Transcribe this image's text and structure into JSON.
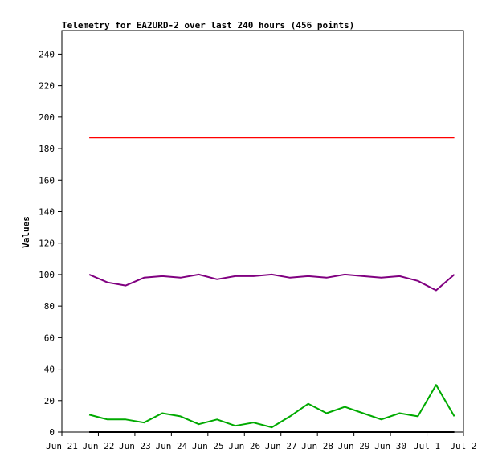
{
  "chart_data": {
    "type": "line",
    "title": "Telemetry for EA2URD-2 over last 240 hours (456 points)",
    "xlabel": "",
    "ylabel": "Values",
    "x_range": [
      "Jun 21",
      "Jul 2"
    ],
    "ylim": [
      0,
      255
    ],
    "grid": false,
    "legend": "none",
    "x_ticks": [
      "Jun 21",
      "Jun 22",
      "Jun 23",
      "Jun 24",
      "Jun 25",
      "Jun 26",
      "Jun 27",
      "Jun 28",
      "Jun 29",
      "Jun 30",
      "Jul 1",
      "Jul 2"
    ],
    "y_ticks": [
      0,
      20,
      40,
      60,
      80,
      100,
      120,
      140,
      160,
      180,
      200,
      220,
      240
    ],
    "x": [
      "Jun 21 18:00",
      "Jun 22 06:00",
      "Jun 22 18:00",
      "Jun 23 06:00",
      "Jun 23 18:00",
      "Jun 24 06:00",
      "Jun 24 18:00",
      "Jun 25 06:00",
      "Jun 25 18:00",
      "Jun 26 06:00",
      "Jun 26 18:00",
      "Jun 27 06:00",
      "Jun 27 18:00",
      "Jun 28 06:00",
      "Jun 28 18:00",
      "Jun 29 06:00",
      "Jun 29 18:00",
      "Jun 30 06:00",
      "Jun 30 18:00",
      "Jul 1 06:00",
      "Jul 1 18:00"
    ],
    "series": [
      {
        "color": "#ff0000",
        "values": [
          187,
          187,
          187,
          187,
          187,
          187,
          187,
          187,
          187,
          187,
          187,
          187,
          187,
          187,
          187,
          187,
          187,
          187,
          187,
          187,
          187
        ]
      },
      {
        "color": "#800080",
        "values": [
          100,
          95,
          93,
          98,
          99,
          98,
          100,
          97,
          99,
          99,
          100,
          98,
          99,
          98,
          100,
          99,
          98,
          99,
          96,
          90,
          100
        ]
      },
      {
        "color": "#00aa00",
        "values": [
          11,
          8,
          8,
          6,
          12,
          10,
          5,
          8,
          4,
          6,
          3,
          10,
          18,
          12,
          16,
          12,
          8,
          12,
          10,
          30,
          10
        ]
      },
      {
        "color": "#000000",
        "values": [
          0,
          0,
          0,
          0,
          0,
          0,
          0,
          0,
          0,
          0,
          0,
          0,
          0,
          0,
          0,
          0,
          0,
          0,
          0,
          0,
          0
        ]
      }
    ]
  }
}
